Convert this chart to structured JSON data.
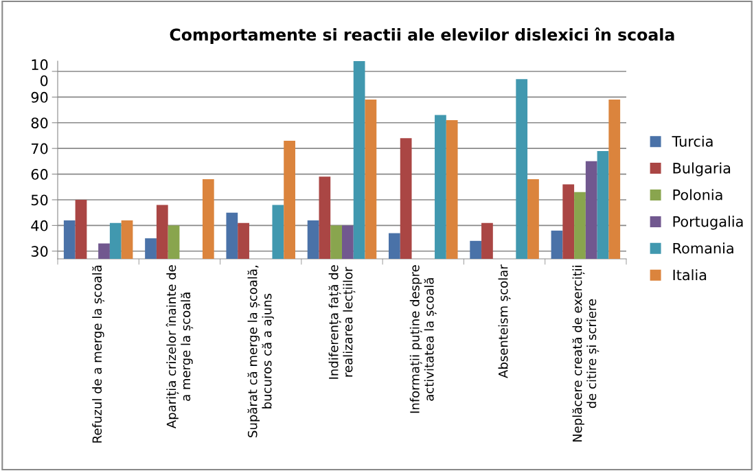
{
  "chart_data": {
    "type": "bar",
    "title": "Comportamente si reactii ale elevilor dislexici în scoala",
    "categories": [
      "Refuzul de a merge la școală",
      "Apariția crizelor înainte de\na merge la școală",
      "Supărat că merge la școală,\nbucuros că a ajuns",
      "Indiferența față de\nrealizarea lecțiilor",
      "Informații puține despre\nactivitatea la școală",
      "Absenteism școlar",
      "Neplăcere creată de exerciții\nde citire și scriere"
    ],
    "series": [
      {
        "name": "Turcia",
        "color": "#4a72a8",
        "values": [
          42,
          35,
          45,
          42,
          37,
          34,
          38
        ]
      },
      {
        "name": "Bulgaria",
        "color": "#aa4644",
        "values": [
          50,
          48,
          41,
          59,
          74,
          41,
          56
        ]
      },
      {
        "name": "Polonia",
        "color": "#89a54e",
        "values": [
          null,
          40,
          null,
          40,
          null,
          null,
          53
        ]
      },
      {
        "name": "Portugalia",
        "color": "#71588f",
        "values": [
          33,
          null,
          null,
          40,
          null,
          null,
          65
        ]
      },
      {
        "name": "Romania",
        "color": "#4198af",
        "values": [
          41,
          null,
          48,
          104,
          83,
          97,
          69
        ]
      },
      {
        "name": "Italia",
        "color": "#db843d",
        "values": [
          42,
          58,
          73,
          89,
          81,
          58,
          89
        ]
      }
    ],
    "ylim": [
      27,
      104
    ],
    "yticks": [
      30,
      40,
      50,
      60,
      70,
      80,
      90,
      {
        "value": 100,
        "label": "10\n0"
      }
    ],
    "grid": "y",
    "legend": "right"
  }
}
